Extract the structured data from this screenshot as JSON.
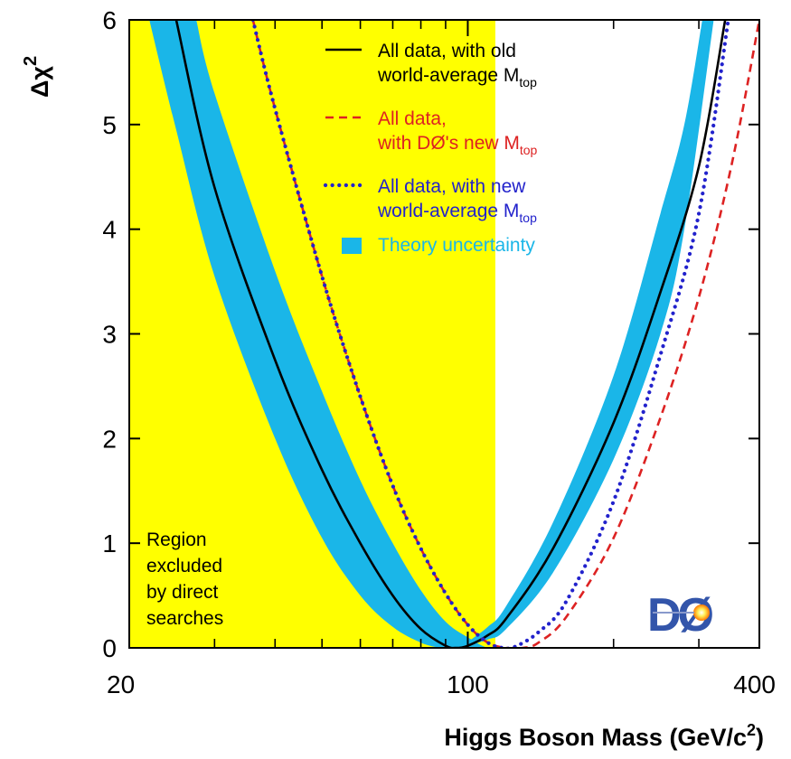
{
  "chart_data": {
    "type": "line",
    "xlabel": "Higgs Boson Mass",
    "xlabel_units": "(GeV/c",
    "xlabel_units_sup": "2",
    "xlabel_units_close": ")",
    "ylabel": "Δχ",
    "ylabel_sup": "2",
    "x_scale": "log",
    "xlim": [
      20,
      400
    ],
    "ylim": [
      0,
      6
    ],
    "x_ticks": [
      {
        "value": 20,
        "label": "20"
      },
      {
        "value": 100,
        "label": "100"
      },
      {
        "value": 400,
        "label": "400"
      }
    ],
    "x_minor_ticks": [
      30,
      40,
      50,
      60,
      70,
      80,
      90,
      200,
      300
    ],
    "y_ticks": [
      0,
      1,
      2,
      3,
      4,
      5,
      6
    ],
    "excluded_region": {
      "x_range": [
        20,
        114
      ],
      "color": "#ffff00",
      "label_lines": [
        "Region",
        "excluded",
        "by direct",
        "searches"
      ]
    },
    "series": [
      {
        "name": "All data, with old world-average M_top",
        "style": "solid",
        "color": "#000000",
        "points": [
          [
            25,
            6.0
          ],
          [
            30,
            4.4
          ],
          [
            40,
            2.75
          ],
          [
            50,
            1.7
          ],
          [
            60,
            1.0
          ],
          [
            70,
            0.5
          ],
          [
            80,
            0.18
          ],
          [
            90,
            0.02
          ],
          [
            95,
            0.0
          ],
          [
            100,
            0.02
          ],
          [
            110,
            0.12
          ],
          [
            120,
            0.28
          ],
          [
            150,
            0.95
          ],
          [
            200,
            2.15
          ],
          [
            250,
            3.4
          ],
          [
            300,
            4.6
          ],
          [
            340,
            6.0
          ]
        ]
      },
      {
        "name": "All data, with DØ's new M_top",
        "style": "dashed",
        "color": "#dd2222",
        "points": [
          [
            36,
            6.0
          ],
          [
            40,
            5.15
          ],
          [
            50,
            3.55
          ],
          [
            60,
            2.4
          ],
          [
            70,
            1.55
          ],
          [
            80,
            0.95
          ],
          [
            90,
            0.52
          ],
          [
            100,
            0.22
          ],
          [
            110,
            0.05
          ],
          [
            120,
            0.0
          ],
          [
            130,
            0.0
          ],
          [
            140,
            0.05
          ],
          [
            160,
            0.3
          ],
          [
            200,
            1.05
          ],
          [
            250,
            2.2
          ],
          [
            300,
            3.35
          ],
          [
            350,
            4.6
          ],
          [
            400,
            6.0
          ]
        ]
      },
      {
        "name": "All data, with new world-average M_top",
        "style": "dotted",
        "color": "#2222cc",
        "points": [
          [
            36,
            6.0
          ],
          [
            40,
            5.15
          ],
          [
            50,
            3.55
          ],
          [
            60,
            2.4
          ],
          [
            70,
            1.55
          ],
          [
            80,
            0.95
          ],
          [
            90,
            0.52
          ],
          [
            100,
            0.22
          ],
          [
            110,
            0.05
          ],
          [
            118,
            0.0
          ],
          [
            125,
            0.01
          ],
          [
            140,
            0.15
          ],
          [
            160,
            0.45
          ],
          [
            200,
            1.4
          ],
          [
            250,
            2.8
          ],
          [
            300,
            4.15
          ],
          [
            345,
            6.0
          ]
        ]
      }
    ],
    "theory_band": {
      "name": "Theory uncertainty",
      "color": "#1ab6e8",
      "left_edge": [
        [
          22,
          6.0
        ],
        [
          25,
          4.95
        ],
        [
          30,
          3.55
        ],
        [
          40,
          2.0
        ],
        [
          50,
          1.05
        ],
        [
          60,
          0.5
        ],
        [
          70,
          0.2
        ],
        [
          80,
          0.05
        ],
        [
          88,
          0.0
        ],
        [
          92,
          0.0
        ]
      ],
      "right_edge": [
        [
          27.5,
          6.0
        ],
        [
          30,
          5.3
        ],
        [
          40,
          3.6
        ],
        [
          50,
          2.45
        ],
        [
          60,
          1.6
        ],
        [
          70,
          1.0
        ],
        [
          80,
          0.55
        ],
        [
          90,
          0.25
        ],
        [
          100,
          0.1
        ],
        [
          110,
          0.0
        ],
        [
          120,
          0.0
        ]
      ],
      "right_lower_edge": [
        [
          96,
          0.0
        ],
        [
          110,
          0.08
        ],
        [
          120,
          0.18
        ],
        [
          150,
          0.72
        ],
        [
          200,
          1.8
        ],
        [
          250,
          3.0
        ],
        [
          280,
          4.0
        ],
        [
          322,
          6.0
        ]
      ],
      "right_upper_edge": [
        [
          96,
          0.0
        ],
        [
          110,
          0.2
        ],
        [
          120,
          0.4
        ],
        [
          150,
          1.2
        ],
        [
          200,
          2.6
        ],
        [
          250,
          4.15
        ],
        [
          280,
          5.0
        ],
        [
          305,
          6.0
        ]
      ]
    },
    "legend": {
      "placement": "top-right",
      "entries": [
        {
          "lines": [
            {
              "text": "All data, with old"
            },
            {
              "text": "world-average M",
              "sub": "top"
            }
          ],
          "style": "solid",
          "color": "#000000",
          "text_color": "#000000"
        },
        {
          "lines": [
            {
              "text": "All data,"
            },
            {
              "text": "with DØ's new M",
              "sub": "top"
            }
          ],
          "style": "dashed",
          "color": "#dd2222",
          "text_color": "#dd2222"
        },
        {
          "lines": [
            {
              "text": "All data, with new"
            },
            {
              "text": "world-average M",
              "sub": "top"
            }
          ],
          "style": "dotted",
          "color": "#2222cc",
          "text_color": "#2222cc"
        },
        {
          "lines": [
            {
              "text": "Theory uncertainty"
            }
          ],
          "style": "band",
          "color": "#1ab6e8",
          "text_color": "#1ab6e8"
        }
      ]
    },
    "logo": {
      "text": "DØ",
      "colors": [
        "#3355aa",
        "#ffcc33",
        "#ff6600"
      ]
    }
  }
}
